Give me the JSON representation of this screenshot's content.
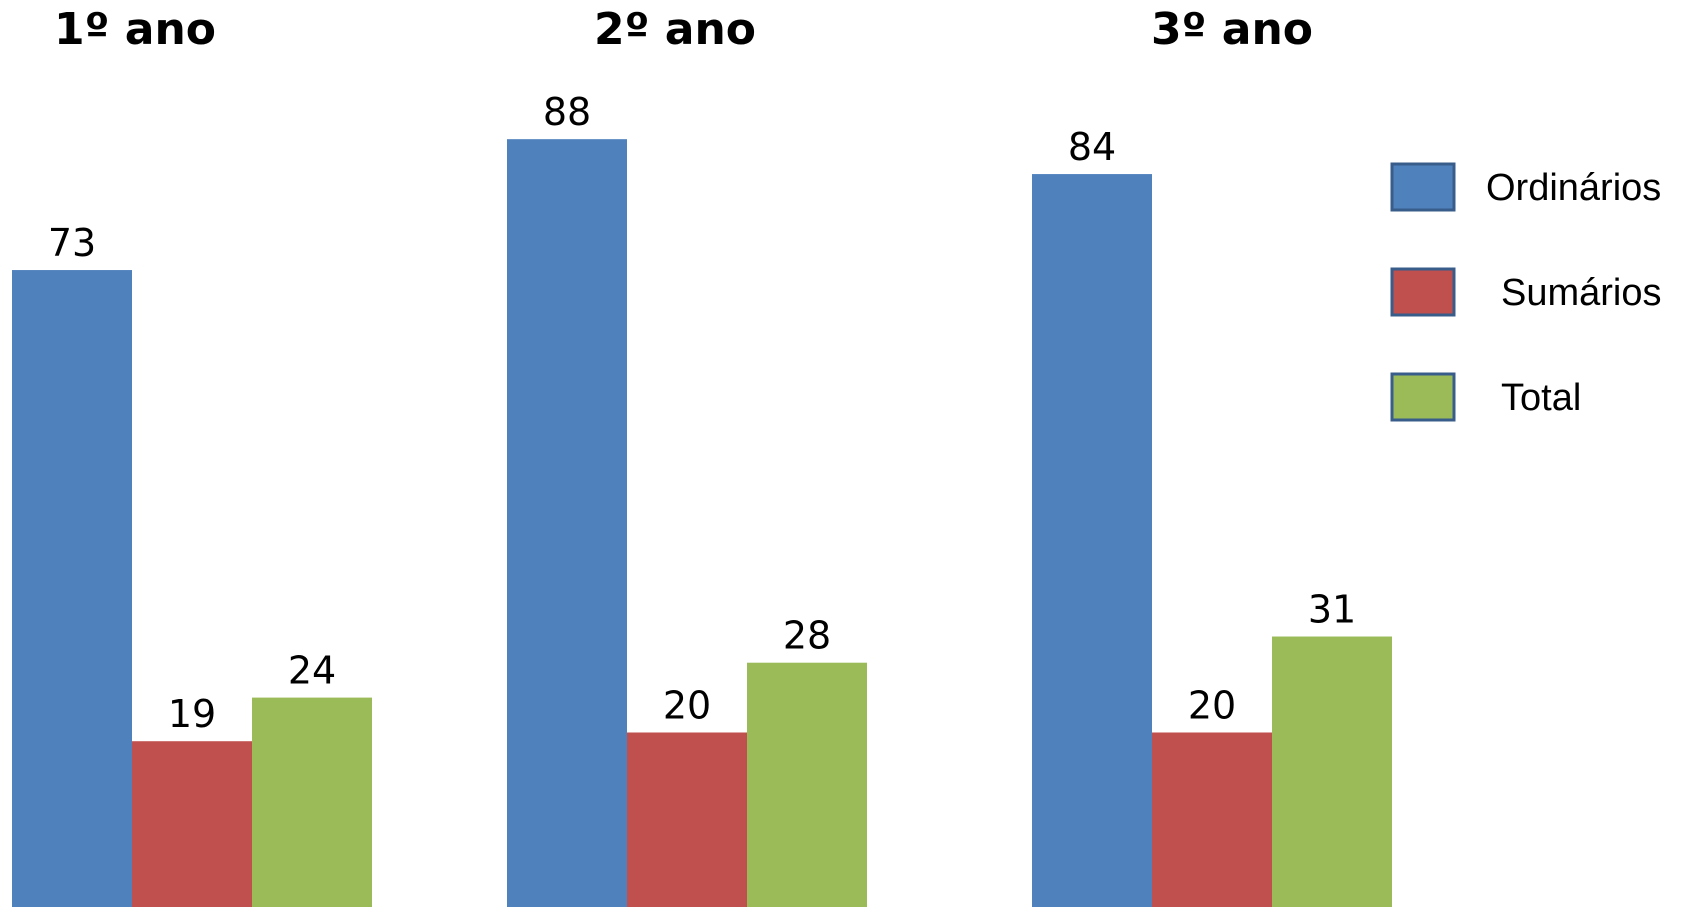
{
  "chart_data": {
    "type": "bar",
    "title": "",
    "xlabel": "",
    "ylabel": "",
    "categories": [
      "1º ano",
      "2º ano",
      "3º ano"
    ],
    "series": [
      {
        "name": "Ordinários",
        "values": [
          73,
          88,
          84
        ],
        "color": "#4F81BD"
      },
      {
        "name": "Sumários",
        "values": [
          19,
          20,
          20
        ],
        "color": "#C0504D"
      },
      {
        "name": "Total",
        "values": [
          24,
          28,
          31
        ],
        "color": "#9BBB59"
      }
    ],
    "ylim": [
      0,
      100
    ],
    "grid": false,
    "legend": "right",
    "data_labels": true
  }
}
